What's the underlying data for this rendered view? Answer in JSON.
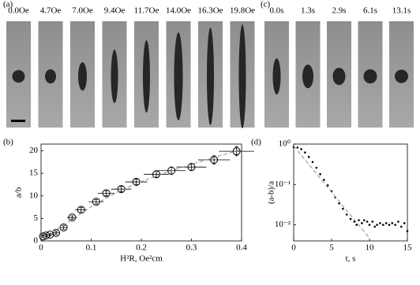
{
  "panel_a": {
    "label": "(a)",
    "frames": [
      "0.0Oe",
      "4.7Oe",
      "7.0Oe",
      "9.4Oe",
      "11.7Oe",
      "14.0Oe",
      "16.3Oe",
      "19.8Oe"
    ]
  },
  "panel_c": {
    "label": "(c)",
    "frames": [
      "0.0s",
      "1.3s",
      "2.9s",
      "6.1s",
      "13.1s"
    ]
  },
  "chart_data": [
    {
      "type": "scatter",
      "panel": "(b)",
      "xlabel": "H²R, Oe²cm",
      "ylabel": "a/b",
      "xlim": [
        0,
        0.4
      ],
      "ylim": [
        0,
        21.5
      ],
      "xticks": [
        0,
        0.1,
        0.2,
        0.3,
        0.4
      ],
      "yticks": [
        0,
        5,
        10,
        15,
        20
      ],
      "series": [
        {
          "mode": "markers",
          "color": "#000000",
          "x": [
            0.004,
            0.01,
            0.018,
            0.03,
            0.045,
            0.062,
            0.08,
            0.11,
            0.13,
            0.16,
            0.19,
            0.23,
            0.26,
            0.3,
            0.345,
            0.39
          ],
          "y": [
            1.0,
            1.2,
            1.4,
            1.8,
            3.0,
            5.2,
            6.9,
            8.7,
            10.6,
            11.5,
            13.1,
            14.8,
            15.6,
            16.4,
            18.0,
            19.9
          ],
          "xerr": [
            0.003,
            0.004,
            0.005,
            0.006,
            0.008,
            0.01,
            0.012,
            0.015,
            0.017,
            0.02,
            0.022,
            0.025,
            0.028,
            0.03,
            0.032,
            0.035
          ],
          "yerr": [
            0.3,
            0.3,
            0.3,
            0.35,
            0.4,
            0.4,
            0.5,
            0.5,
            0.5,
            0.6,
            0.6,
            0.7,
            0.8,
            0.8,
            0.9,
            1.0
          ]
        },
        {
          "mode": "line",
          "dash": true,
          "color": "#8c8c8c",
          "x": [
            0,
            0.05,
            0.1,
            0.15,
            0.2,
            0.25,
            0.3,
            0.35,
            0.4
          ],
          "y": [
            0.6,
            3.8,
            7.6,
            10.7,
            13.2,
            15.2,
            17.0,
            18.7,
            20.3
          ]
        }
      ]
    },
    {
      "type": "scatter",
      "panel": "(d)",
      "xlabel": "t, s",
      "ylabel": "(a-b)/a",
      "log_y": true,
      "xlim": [
        0,
        15
      ],
      "ylim": [
        0.004,
        1
      ],
      "xticks": [
        0,
        5,
        10,
        15
      ],
      "yticks": [
        {
          "value": 0.01,
          "label": "10⁻²"
        },
        {
          "value": 0.1,
          "label": "10⁻¹"
        },
        {
          "value": 1,
          "label": "10⁰"
        }
      ],
      "series": [
        {
          "mode": "dots",
          "color": "#000000",
          "x": [
            0,
            0.5,
            1.0,
            1.5,
            2.0,
            2.5,
            3.0,
            3.5,
            4.0,
            4.5,
            5.0,
            5.5,
            6.0,
            6.5,
            7.0,
            7.5,
            8.0,
            8.3,
            8.6,
            9.0,
            9.3,
            9.7,
            10.0,
            10.4,
            10.7,
            11.0,
            11.4,
            11.8,
            12.2,
            12.6,
            13.0,
            13.4,
            13.8,
            14.2,
            14.6,
            15.0
          ],
          "y": [
            0.85,
            0.82,
            0.75,
            0.62,
            0.48,
            0.36,
            0.26,
            0.18,
            0.13,
            0.095,
            0.068,
            0.048,
            0.034,
            0.025,
            0.018,
            0.014,
            0.012,
            0.01,
            0.013,
            0.011,
            0.013,
            0.012,
            0.01,
            0.012,
            0.009,
            0.01,
            0.011,
            0.01,
            0.011,
            0.01,
            0.011,
            0.01,
            0.012,
            0.009,
            0.011,
            0.007
          ]
        },
        {
          "mode": "line",
          "dash": true,
          "color": "#8c8c8c",
          "x": [
            0,
            2,
            4,
            6,
            8,
            10
          ],
          "y": [
            0.9,
            0.314,
            0.11,
            0.038,
            0.0134,
            0.0047
          ]
        }
      ]
    }
  ]
}
